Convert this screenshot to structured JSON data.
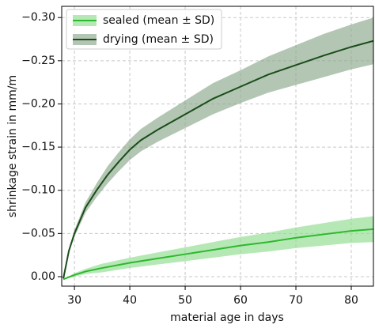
{
  "chart_data": {
    "type": "line",
    "xlabel": "material age in days",
    "ylabel": "shrinkage strain in mm/m",
    "xlim": [
      27.7,
      84
    ],
    "ylim": [
      0.011,
      -0.313
    ],
    "xticks": [
      30,
      40,
      50,
      60,
      70,
      80
    ],
    "yticks": [
      {
        "value": 0,
        "label": "0.00"
      },
      {
        "value": -0.05,
        "label": "−0.05"
      },
      {
        "value": -0.1,
        "label": "−0.10"
      },
      {
        "value": -0.15,
        "label": "−0.15"
      },
      {
        "value": -0.2,
        "label": "−0.20"
      },
      {
        "value": -0.25,
        "label": "−0.25"
      },
      {
        "value": -0.3,
        "label": "−0.30"
      }
    ],
    "grid": true,
    "legend": "upper left",
    "series": [
      {
        "name": "sealed (mean ± SD)",
        "color": "#2eb82e",
        "band_color": "#8fdc8f",
        "x": [
          28,
          30,
          32,
          35,
          40,
          45,
          50,
          55,
          60,
          65,
          70,
          75,
          80,
          84
        ],
        "values": [
          0.003,
          -0.002,
          -0.006,
          -0.01,
          -0.016,
          -0.021,
          -0.026,
          -0.031,
          -0.036,
          -0.04,
          -0.045,
          -0.049,
          -0.053,
          -0.055
        ],
        "sd": [
          0,
          0.002,
          0.003,
          0.005,
          0.006,
          0.007,
          0.008,
          0.009,
          0.01,
          0.011,
          0.012,
          0.013,
          0.014,
          0.015
        ]
      },
      {
        "name": "drying (mean ± SD)",
        "color": "#1a4d1a",
        "band_color": "#8aa88a",
        "x": [
          28,
          29,
          30,
          31,
          32,
          34,
          36,
          38,
          40,
          42,
          45,
          50,
          55,
          60,
          65,
          70,
          75,
          80,
          84
        ],
        "values": [
          0.002,
          -0.03,
          -0.05,
          -0.065,
          -0.08,
          -0.1,
          -0.118,
          -0.133,
          -0.147,
          -0.158,
          -0.17,
          -0.188,
          -0.206,
          -0.22,
          -0.234,
          -0.245,
          -0.256,
          -0.266,
          -0.273
        ],
        "sd": [
          0,
          0.002,
          0.004,
          0.005,
          0.006,
          0.008,
          0.01,
          0.011,
          0.012,
          0.013,
          0.014,
          0.016,
          0.018,
          0.019,
          0.021,
          0.023,
          0.025,
          0.026,
          0.027
        ]
      }
    ]
  }
}
